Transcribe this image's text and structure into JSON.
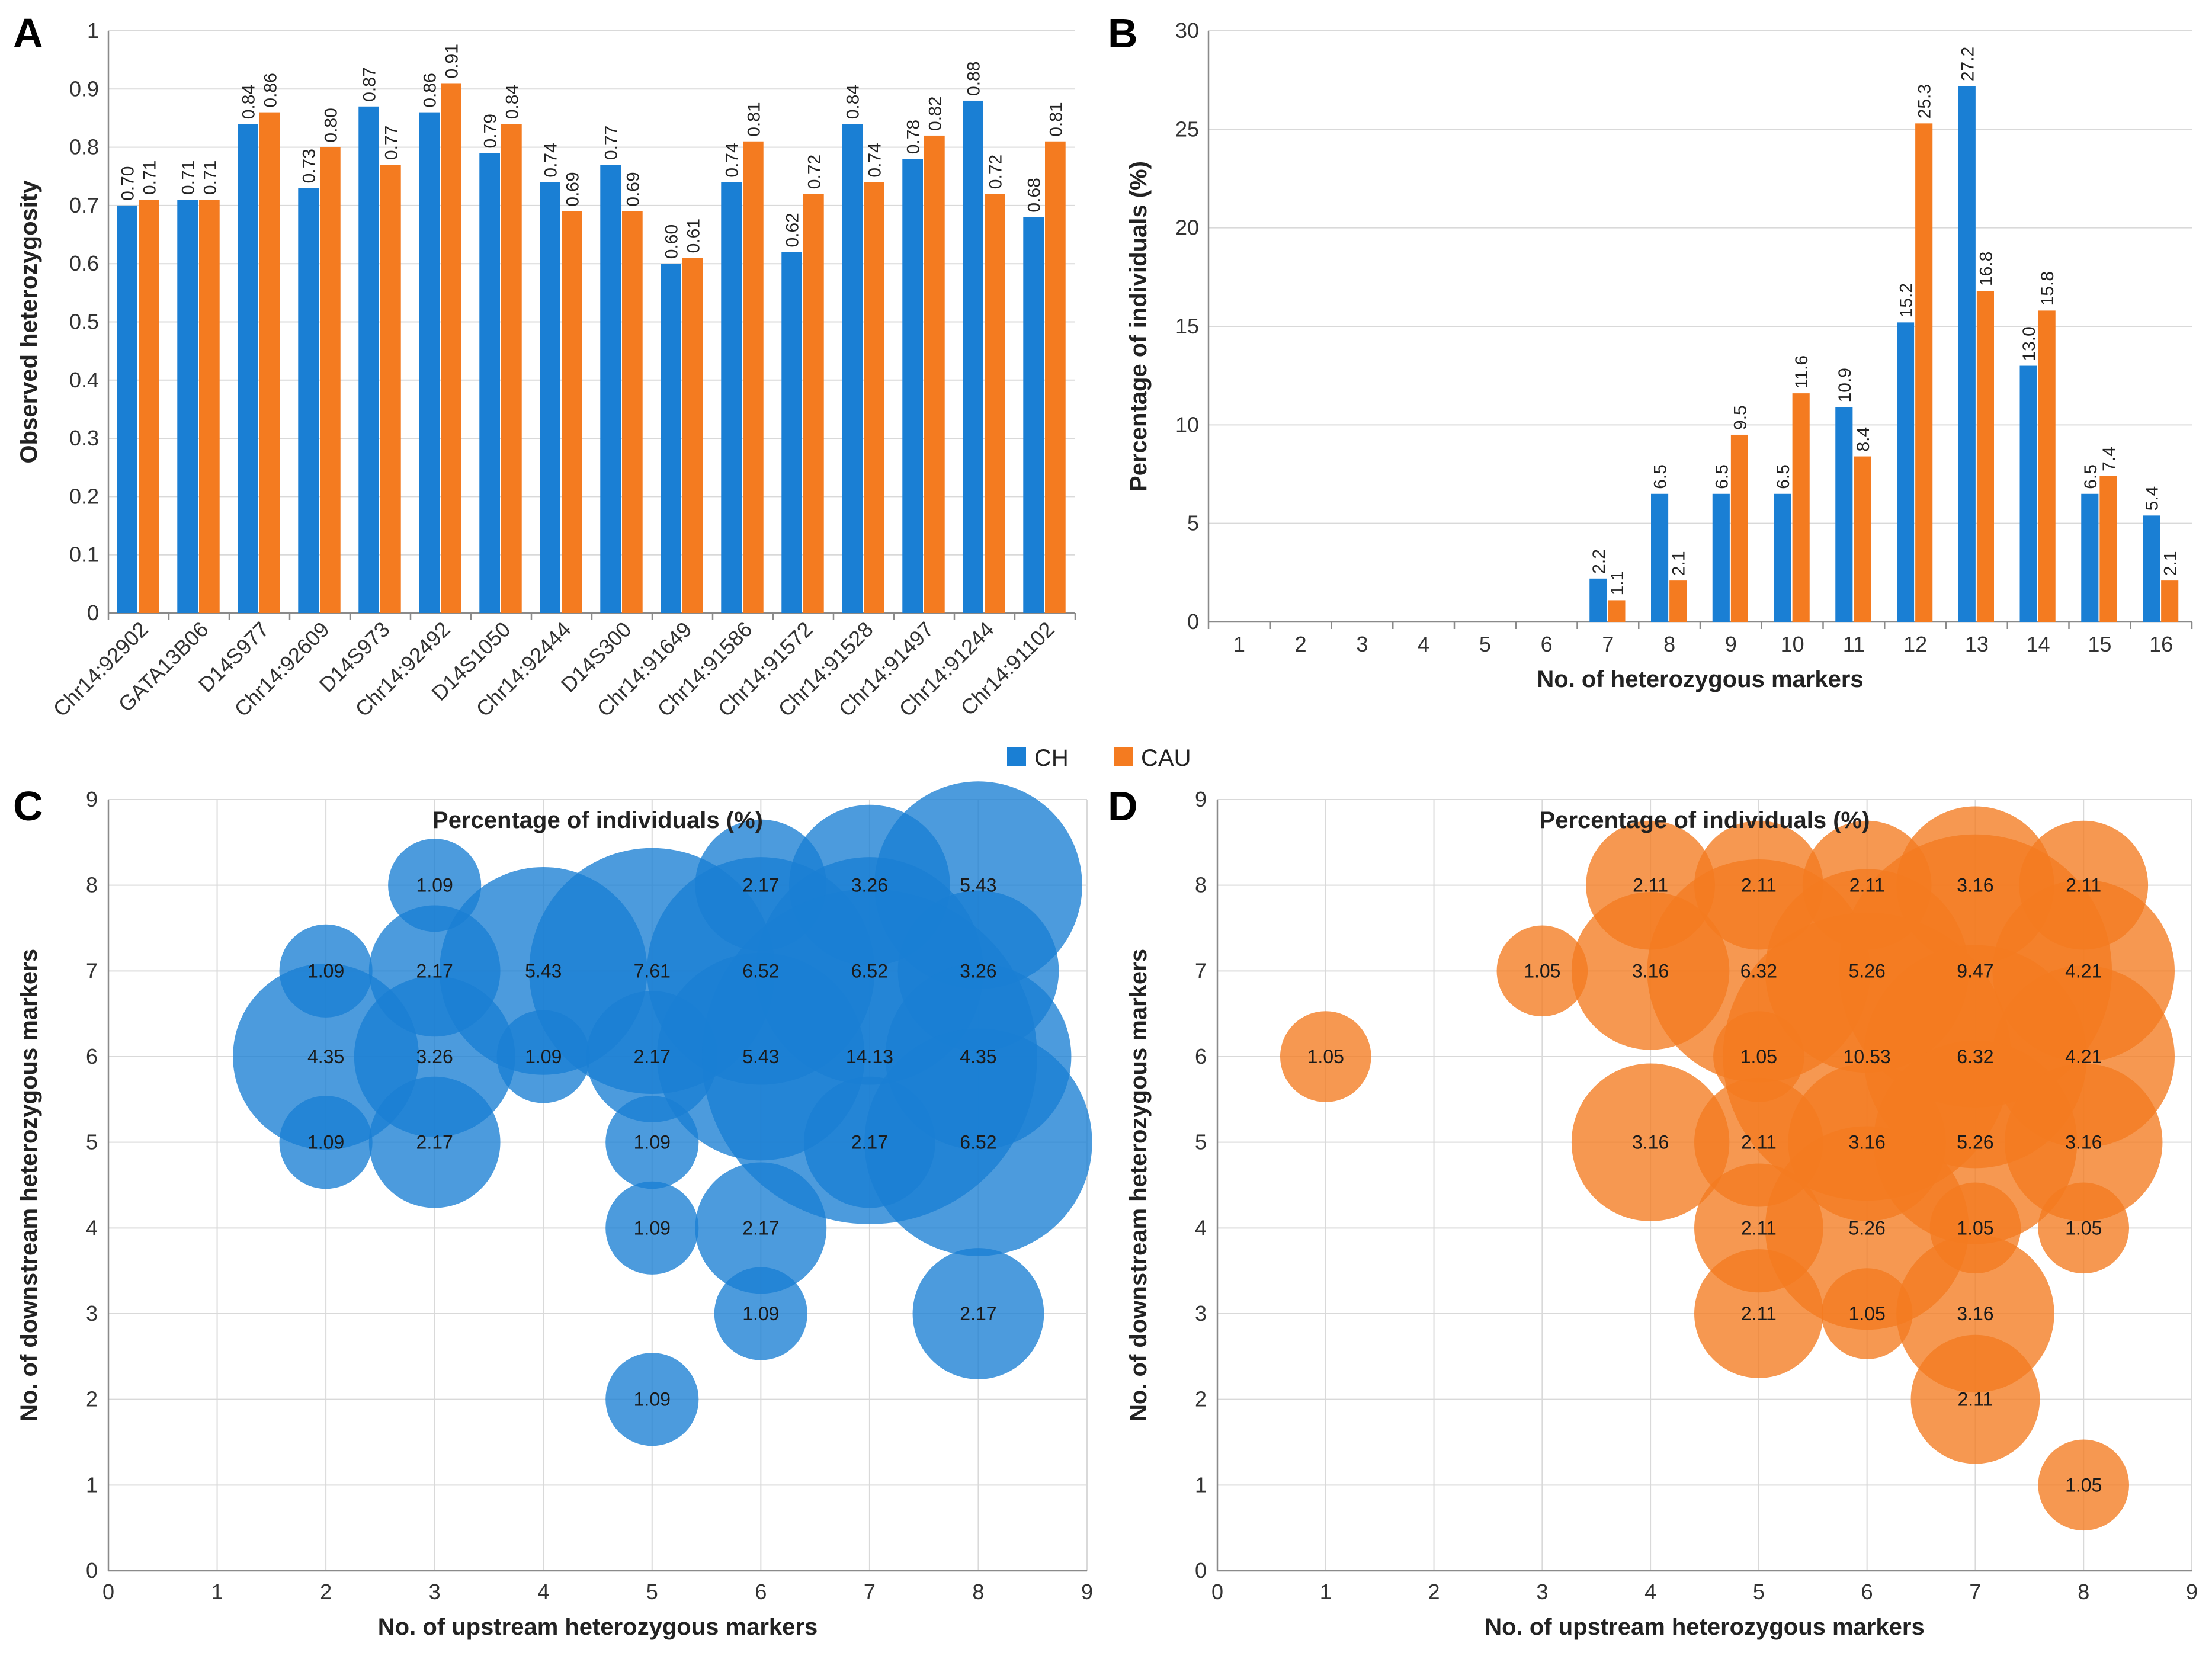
{
  "figure": {
    "legend": [
      {
        "name": "CH",
        "color": "#1a7fd4"
      },
      {
        "name": "CAU",
        "color": "#f47b20"
      }
    ]
  },
  "chart_data": [
    {
      "panel": "A",
      "type": "bar",
      "categories": [
        "Chr14:92902",
        "GATA13B06",
        "D14S977",
        "Chr14:92609",
        "D14S973",
        "Chr14:92492",
        "D14S1050",
        "Chr14:92444",
        "D14S300",
        "Chr14:91649",
        "Chr14:91586",
        "Chr14:91572",
        "Chr14:91528",
        "Chr14:91497",
        "Chr14:91244",
        "Chr14:91102"
      ],
      "series": [
        {
          "name": "CH",
          "values": [
            0.7,
            0.71,
            0.84,
            0.73,
            0.87,
            0.86,
            0.79,
            0.74,
            0.77,
            0.6,
            0.74,
            0.62,
            0.84,
            0.78,
            0.88,
            0.68
          ],
          "labels": [
            "0.70",
            "0.71",
            "0.84",
            "0.73",
            "0.87",
            "0.86",
            "0.79",
            "0.74",
            "0.77",
            "0.60",
            "0.74",
            "0.62",
            "0.84",
            "0.78",
            "0.88",
            "0.68"
          ]
        },
        {
          "name": "CAU",
          "values": [
            0.71,
            0.71,
            0.86,
            0.8,
            0.77,
            0.91,
            0.84,
            0.69,
            0.69,
            0.61,
            0.81,
            0.72,
            0.74,
            0.82,
            0.72,
            0.81
          ],
          "labels": [
            "0.71",
            "0.71",
            "0.86",
            "0.80",
            "0.77",
            "0.91",
            "0.84",
            "0.69",
            "0.69",
            "0.61",
            "0.81",
            "0.72",
            "0.74",
            "0.82",
            "0.72",
            "0.81"
          ]
        }
      ],
      "ylabel": "Observed heterozygosity",
      "xlabel": "",
      "ylim": [
        0,
        1
      ],
      "yticks": [
        "0",
        "0.1",
        "0.2",
        "0.3",
        "0.4",
        "0.5",
        "0.6",
        "0.7",
        "0.8",
        "0.9",
        "1"
      ],
      "grid": true
    },
    {
      "panel": "B",
      "type": "bar",
      "categories": [
        "1",
        "2",
        "3",
        "4",
        "5",
        "6",
        "7",
        "8",
        "9",
        "10",
        "11",
        "12",
        "13",
        "14",
        "15",
        "16"
      ],
      "series": [
        {
          "name": "CH",
          "values": [
            0,
            0,
            0,
            0,
            0,
            0,
            2.2,
            6.5,
            6.5,
            6.5,
            10.9,
            15.2,
            27.2,
            13.0,
            6.5,
            5.4
          ],
          "labels": [
            "",
            "",
            "",
            "",
            "",
            "",
            "2.2",
            "6.5",
            "6.5",
            "6.5",
            "10.9",
            "15.2",
            "27.2",
            "13.0",
            "6.5",
            "5.4"
          ]
        },
        {
          "name": "CAU",
          "values": [
            0,
            0,
            0,
            0,
            0,
            0,
            1.1,
            2.1,
            9.5,
            11.6,
            8.4,
            25.3,
            16.8,
            15.8,
            7.4,
            2.1
          ],
          "labels": [
            "",
            "",
            "",
            "",
            "",
            "",
            "1.1",
            "2.1",
            "9.5",
            "11.6",
            "8.4",
            "25.3",
            "16.8",
            "15.8",
            "7.4",
            "2.1"
          ]
        }
      ],
      "ylabel": "Percentage of individuals (%)",
      "xlabel": "No. of heterozygous markers",
      "ylim": [
        0,
        30
      ],
      "yticks": [
        "0",
        "5",
        "10",
        "15",
        "20",
        "25",
        "30"
      ],
      "grid": true
    },
    {
      "panel": "C",
      "type": "scatter",
      "subtype": "bubble",
      "title": "Percentage of individuals (%)",
      "series_name": "CH",
      "color": "#1a7fd4",
      "xlabel": "No. of upstream heterozygous markers",
      "ylabel": "No. of downstream heterozygous markers",
      "xlim": [
        0,
        9
      ],
      "ylim": [
        0,
        9
      ],
      "xticks": [
        "0",
        "1",
        "2",
        "3",
        "4",
        "5",
        "6",
        "7",
        "8",
        "9"
      ],
      "yticks": [
        "0",
        "1",
        "2",
        "3",
        "4",
        "5",
        "6",
        "7",
        "8",
        "9"
      ],
      "points": [
        {
          "x": 3,
          "y": 8,
          "size": 1.09,
          "label": "1.09"
        },
        {
          "x": 6,
          "y": 8,
          "size": 2.17,
          "label": "2.17"
        },
        {
          "x": 7,
          "y": 8,
          "size": 3.26,
          "label": "3.26"
        },
        {
          "x": 8,
          "y": 8,
          "size": 5.43,
          "label": "5.43"
        },
        {
          "x": 2,
          "y": 7,
          "size": 1.09,
          "label": "1.09"
        },
        {
          "x": 3,
          "y": 7,
          "size": 2.17,
          "label": "2.17"
        },
        {
          "x": 4,
          "y": 7,
          "size": 5.43,
          "label": "5.43"
        },
        {
          "x": 5,
          "y": 7,
          "size": 7.61,
          "label": "7.61"
        },
        {
          "x": 6,
          "y": 7,
          "size": 6.52,
          "label": "6.52"
        },
        {
          "x": 7,
          "y": 7,
          "size": 6.52,
          "label": "6.52"
        },
        {
          "x": 8,
          "y": 7,
          "size": 3.26,
          "label": "3.26"
        },
        {
          "x": 2,
          "y": 6,
          "size": 4.35,
          "label": "4.35"
        },
        {
          "x": 3,
          "y": 6,
          "size": 3.26,
          "label": "3.26"
        },
        {
          "x": 4,
          "y": 6,
          "size": 1.09,
          "label": "1.09"
        },
        {
          "x": 5,
          "y": 6,
          "size": 2.17,
          "label": "2.17"
        },
        {
          "x": 6,
          "y": 6,
          "size": 5.43,
          "label": "5.43"
        },
        {
          "x": 7,
          "y": 6,
          "size": 14.13,
          "label": "14.13"
        },
        {
          "x": 8,
          "y": 6,
          "size": 4.35,
          "label": "4.35"
        },
        {
          "x": 2,
          "y": 5,
          "size": 1.09,
          "label": "1.09"
        },
        {
          "x": 3,
          "y": 5,
          "size": 2.17,
          "label": "2.17"
        },
        {
          "x": 5,
          "y": 5,
          "size": 1.09,
          "label": "1.09"
        },
        {
          "x": 7,
          "y": 5,
          "size": 2.17,
          "label": "2.17"
        },
        {
          "x": 8,
          "y": 5,
          "size": 6.52,
          "label": "6.52"
        },
        {
          "x": 5,
          "y": 4,
          "size": 1.09,
          "label": "1.09"
        },
        {
          "x": 6,
          "y": 4,
          "size": 2.17,
          "label": "2.17"
        },
        {
          "x": 6,
          "y": 3,
          "size": 1.09,
          "label": "1.09"
        },
        {
          "x": 8,
          "y": 3,
          "size": 2.17,
          "label": "2.17"
        },
        {
          "x": 5,
          "y": 2,
          "size": 1.09,
          "label": "1.09"
        }
      ]
    },
    {
      "panel": "D",
      "type": "scatter",
      "subtype": "bubble",
      "title": "Percentage of individuals (%)",
      "series_name": "CAU",
      "color": "#f47b20",
      "xlabel": "No. of upstream heterozygous markers",
      "ylabel": "No. of downstream heterozygous markers",
      "xlim": [
        0,
        9
      ],
      "ylim": [
        0,
        9
      ],
      "xticks": [
        "0",
        "1",
        "2",
        "3",
        "4",
        "5",
        "6",
        "7",
        "8",
        "9"
      ],
      "yticks": [
        "0",
        "1",
        "2",
        "3",
        "4",
        "5",
        "6",
        "7",
        "8",
        "9"
      ],
      "points": [
        {
          "x": 4,
          "y": 8,
          "size": 2.11,
          "label": "2.11"
        },
        {
          "x": 5,
          "y": 8,
          "size": 2.11,
          "label": "2.11"
        },
        {
          "x": 6,
          "y": 8,
          "size": 2.11,
          "label": "2.11"
        },
        {
          "x": 7,
          "y": 8,
          "size": 3.16,
          "label": "3.16"
        },
        {
          "x": 8,
          "y": 8,
          "size": 2.11,
          "label": "2.11"
        },
        {
          "x": 3,
          "y": 7,
          "size": 1.05,
          "label": "1.05"
        },
        {
          "x": 4,
          "y": 7,
          "size": 3.16,
          "label": "3.16"
        },
        {
          "x": 5,
          "y": 7,
          "size": 6.32,
          "label": "6.32"
        },
        {
          "x": 6,
          "y": 7,
          "size": 5.26,
          "label": "5.26"
        },
        {
          "x": 7,
          "y": 7,
          "size": 9.47,
          "label": "9.47"
        },
        {
          "x": 8,
          "y": 7,
          "size": 4.21,
          "label": "4.21"
        },
        {
          "x": 1,
          "y": 6,
          "size": 1.05,
          "label": "1.05"
        },
        {
          "x": 5,
          "y": 6,
          "size": 1.05,
          "label": "1.05"
        },
        {
          "x": 6,
          "y": 6,
          "size": 10.53,
          "label": "10.53"
        },
        {
          "x": 7,
          "y": 6,
          "size": 6.32,
          "label": "6.32"
        },
        {
          "x": 8,
          "y": 6,
          "size": 4.21,
          "label": "4.21"
        },
        {
          "x": 4,
          "y": 5,
          "size": 3.16,
          "label": "3.16"
        },
        {
          "x": 5,
          "y": 5,
          "size": 2.11,
          "label": "2.11"
        },
        {
          "x": 6,
          "y": 5,
          "size": 3.16,
          "label": "3.16"
        },
        {
          "x": 7,
          "y": 5,
          "size": 5.26,
          "label": "5.26"
        },
        {
          "x": 8,
          "y": 5,
          "size": 3.16,
          "label": "3.16"
        },
        {
          "x": 5,
          "y": 4,
          "size": 2.11,
          "label": "2.11"
        },
        {
          "x": 6,
          "y": 4,
          "size": 5.26,
          "label": "5.26"
        },
        {
          "x": 7,
          "y": 4,
          "size": 1.05,
          "label": "1.05"
        },
        {
          "x": 8,
          "y": 4,
          "size": 1.05,
          "label": "1.05"
        },
        {
          "x": 5,
          "y": 3,
          "size": 2.11,
          "label": "2.11"
        },
        {
          "x": 6,
          "y": 3,
          "size": 1.05,
          "label": "1.05"
        },
        {
          "x": 7,
          "y": 3,
          "size": 3.16,
          "label": "3.16"
        },
        {
          "x": 7,
          "y": 2,
          "size": 2.11,
          "label": "2.11"
        },
        {
          "x": 8,
          "y": 1,
          "size": 1.05,
          "label": "1.05"
        }
      ]
    }
  ]
}
